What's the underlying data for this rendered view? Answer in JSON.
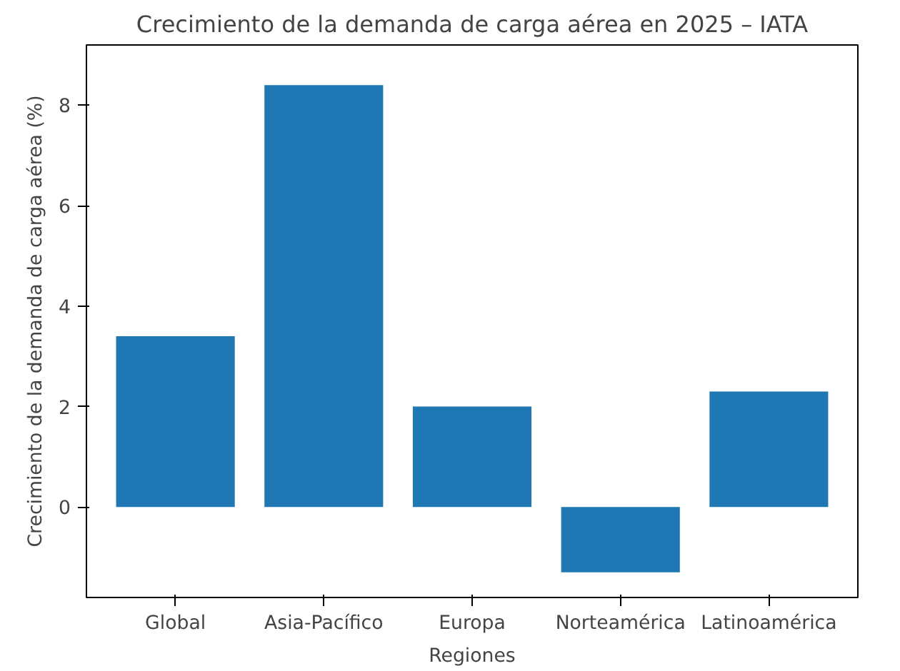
{
  "chart_data": {
    "type": "bar",
    "title": "Crecimiento de la demanda de carga aérea en 2025 – IATA",
    "xlabel": "Regiones",
    "ylabel": "Crecimiento de la demanda de carga aérea (%)",
    "categories": [
      "Global",
      "Asia-Pacífico",
      "Europa",
      "Norteamérica",
      "Latinoamérica"
    ],
    "values": [
      3.4,
      8.4,
      2.0,
      -1.3,
      2.3
    ],
    "color": "#1f77b4",
    "ylim": [
      -1.8,
      9.2
    ],
    "yticks": [
      0,
      2,
      4,
      6,
      8
    ],
    "grid": false
  }
}
